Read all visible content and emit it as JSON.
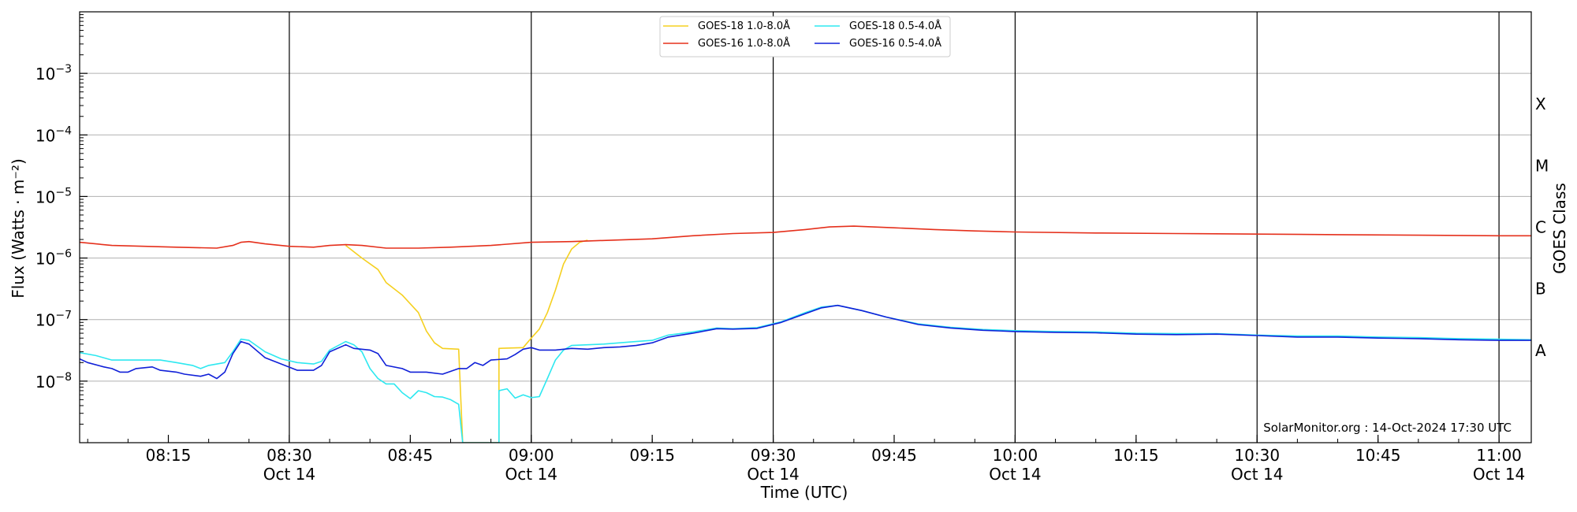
{
  "chart_data": {
    "type": "line",
    "xlabel": "Time (UTC)",
    "ylabel": "Flux (Watts · m⁻²)",
    "y2label": "GOES Class",
    "watermark": "SolarMonitor.org : 14-Oct-2024 17:30 UTC",
    "x_range": [
      "08:04",
      "11:04"
    ],
    "y_range": [
      1e-09,
      0.01
    ],
    "y_scale": "log",
    "grid": "horizontal at each decade; vertical lines at each half hour",
    "legend_position": "top-center",
    "x_ticks": [
      {
        "time": "08:15",
        "label": "08:15",
        "date": ""
      },
      {
        "time": "08:30",
        "label": "08:30",
        "date": "Oct 14"
      },
      {
        "time": "08:45",
        "label": "08:45",
        "date": ""
      },
      {
        "time": "09:00",
        "label": "09:00",
        "date": "Oct 14"
      },
      {
        "time": "09:15",
        "label": "09:15",
        "date": ""
      },
      {
        "time": "09:30",
        "label": "09:30",
        "date": "Oct 14"
      },
      {
        "time": "09:45",
        "label": "09:45",
        "date": ""
      },
      {
        "time": "10:00",
        "label": "10:00",
        "date": "Oct 14"
      },
      {
        "time": "10:15",
        "label": "10:15",
        "date": ""
      },
      {
        "time": "10:30",
        "label": "10:30",
        "date": "Oct 14"
      },
      {
        "time": "10:45",
        "label": "10:45",
        "date": ""
      },
      {
        "time": "11:00",
        "label": "11:00",
        "date": "Oct 14"
      }
    ],
    "y_ticks": [
      {
        "value": 1e-08,
        "label_base": "10",
        "label_exp": "−8"
      },
      {
        "value": 1e-07,
        "label_base": "10",
        "label_exp": "−7"
      },
      {
        "value": 1e-06,
        "label_base": "10",
        "label_exp": "−6"
      },
      {
        "value": 1e-05,
        "label_base": "10",
        "label_exp": "−5"
      },
      {
        "value": 0.0001,
        "label_base": "10",
        "label_exp": "−4"
      },
      {
        "value": 0.001,
        "label_base": "10",
        "label_exp": "−3"
      }
    ],
    "goes_classes": [
      {
        "label": "A",
        "value": 3.16e-08
      },
      {
        "label": "B",
        "value": 3.16e-07
      },
      {
        "label": "C",
        "value": 3.16e-06
      },
      {
        "label": "M",
        "value": 3.16e-05
      },
      {
        "label": "X",
        "value": 0.000316
      }
    ],
    "series": [
      {
        "name": "GOES-18 1.0-8.0Å",
        "color": "#f5d020",
        "points": [
          [
            "08:37",
            1.6e-06
          ],
          [
            "08:39",
            1e-06
          ],
          [
            "08:41",
            6.5e-07
          ],
          [
            "08:42",
            4e-07
          ],
          [
            "08:44",
            2.5e-07
          ],
          [
            "08:46",
            1.3e-07
          ],
          [
            "08:47",
            6.5e-08
          ],
          [
            "08:48",
            4.2e-08
          ],
          [
            "08:49",
            3.4e-08
          ],
          [
            "08:51",
            3.3e-08
          ],
          [
            "08:51.5",
            1e-09
          ],
          [
            "08:56",
            1e-09
          ],
          [
            "08:56",
            3.4e-08
          ],
          [
            "08:59",
            3.5e-08
          ],
          [
            "09:00",
            5e-08
          ],
          [
            "09:01",
            7e-08
          ],
          [
            "09:02",
            1.3e-07
          ],
          [
            "09:03",
            3e-07
          ],
          [
            "09:04",
            8e-07
          ],
          [
            "09:05",
            1.4e-06
          ],
          [
            "09:06",
            1.8e-06
          ],
          [
            "09:07",
            1.95e-06
          ]
        ]
      },
      {
        "name": "GOES-18 0.5-4.0Å",
        "color": "#2ee8f0",
        "points": [
          [
            "08:04",
            2.9e-08
          ],
          [
            "08:06",
            2.6e-08
          ],
          [
            "08:08",
            2.2e-08
          ],
          [
            "08:10",
            2.2e-08
          ],
          [
            "08:12",
            2.2e-08
          ],
          [
            "08:14",
            2.2e-08
          ],
          [
            "08:16",
            2e-08
          ],
          [
            "08:18",
            1.8e-08
          ],
          [
            "08:19",
            1.6e-08
          ],
          [
            "08:20",
            1.8e-08
          ],
          [
            "08:22",
            2e-08
          ],
          [
            "08:23",
            3e-08
          ],
          [
            "08:24",
            4.8e-08
          ],
          [
            "08:25",
            4.6e-08
          ],
          [
            "08:27",
            3e-08
          ],
          [
            "08:29",
            2.3e-08
          ],
          [
            "08:31",
            2e-08
          ],
          [
            "08:33",
            1.9e-08
          ],
          [
            "08:34",
            2.1e-08
          ],
          [
            "08:35",
            3.2e-08
          ],
          [
            "08:37",
            4.4e-08
          ],
          [
            "08:38",
            3.9e-08
          ],
          [
            "08:39",
            3e-08
          ],
          [
            "08:40",
            1.6e-08
          ],
          [
            "08:41",
            1.1e-08
          ],
          [
            "08:42",
            9e-09
          ],
          [
            "08:43",
            9e-09
          ],
          [
            "08:44",
            6.5e-09
          ],
          [
            "08:45",
            5.2e-09
          ],
          [
            "08:46",
            7e-09
          ],
          [
            "08:47",
            6.5e-09
          ],
          [
            "08:48",
            5.6e-09
          ],
          [
            "08:49",
            5.5e-09
          ],
          [
            "08:50",
            5e-09
          ],
          [
            "08:51",
            4.2e-09
          ],
          [
            "08:51.5",
            1e-09
          ],
          [
            "08:56",
            1e-09
          ],
          [
            "08:56",
            7e-09
          ],
          [
            "08:57",
            7.5e-09
          ],
          [
            "08:58",
            5.3e-09
          ],
          [
            "08:59",
            6e-09
          ],
          [
            "09:00",
            5.4e-09
          ],
          [
            "09:01",
            5.6e-09
          ],
          [
            "09:02",
            1.1e-08
          ],
          [
            "09:03",
            2.2e-08
          ],
          [
            "09:04",
            3.2e-08
          ],
          [
            "09:05",
            3.8e-08
          ],
          [
            "09:07",
            3.9e-08
          ],
          [
            "09:09",
            4e-08
          ],
          [
            "09:11",
            4.2e-08
          ],
          [
            "09:13",
            4.4e-08
          ],
          [
            "09:15",
            4.6e-08
          ],
          [
            "09:17",
            5.6e-08
          ],
          [
            "09:20",
            6.3e-08
          ],
          [
            "09:23",
            7.3e-08
          ],
          [
            "09:25",
            7.1e-08
          ],
          [
            "09:28",
            7.4e-08
          ],
          [
            "09:31",
            9.2e-08
          ],
          [
            "09:34",
            1.3e-07
          ],
          [
            "09:36",
            1.6e-07
          ],
          [
            "09:38",
            1.7e-07
          ],
          [
            "09:41",
            1.4e-07
          ],
          [
            "09:44",
            1.1e-07
          ],
          [
            "09:48",
            8.5e-08
          ],
          [
            "09:52",
            7.5e-08
          ],
          [
            "09:56",
            6.9e-08
          ],
          [
            "10:00",
            6.6e-08
          ],
          [
            "10:05",
            6.4e-08
          ],
          [
            "10:10",
            6.3e-08
          ],
          [
            "10:15",
            6e-08
          ],
          [
            "10:20",
            5.9e-08
          ],
          [
            "10:25",
            5.9e-08
          ],
          [
            "10:30",
            5.6e-08
          ],
          [
            "10:35",
            5.4e-08
          ],
          [
            "10:40",
            5.4e-08
          ],
          [
            "10:45",
            5.2e-08
          ],
          [
            "10:50",
            5.1e-08
          ],
          [
            "10:55",
            4.9e-08
          ],
          [
            "11:00",
            4.8e-08
          ],
          [
            "11:04",
            4.7e-08
          ]
        ]
      },
      {
        "name": "GOES-16 1.0-8.0Å",
        "color": "#e5301c",
        "points": [
          [
            "08:04",
            1.8e-06
          ],
          [
            "08:08",
            1.6e-06
          ],
          [
            "08:12",
            1.55e-06
          ],
          [
            "08:16",
            1.5e-06
          ],
          [
            "08:21",
            1.45e-06
          ],
          [
            "08:23",
            1.6e-06
          ],
          [
            "08:24",
            1.8e-06
          ],
          [
            "08:25",
            1.85e-06
          ],
          [
            "08:27",
            1.7e-06
          ],
          [
            "08:30",
            1.55e-06
          ],
          [
            "08:33",
            1.5e-06
          ],
          [
            "08:35",
            1.6e-06
          ],
          [
            "08:37",
            1.65e-06
          ],
          [
            "08:39",
            1.6e-06
          ],
          [
            "08:42",
            1.45e-06
          ],
          [
            "08:46",
            1.45e-06
          ],
          [
            "08:50",
            1.5e-06
          ],
          [
            "08:55",
            1.6e-06
          ],
          [
            "09:00",
            1.8e-06
          ],
          [
            "09:05",
            1.85e-06
          ],
          [
            "09:10",
            1.95e-06
          ],
          [
            "09:15",
            2.05e-06
          ],
          [
            "09:20",
            2.3e-06
          ],
          [
            "09:25",
            2.5e-06
          ],
          [
            "09:30",
            2.6e-06
          ],
          [
            "09:34",
            2.9e-06
          ],
          [
            "09:37",
            3.2e-06
          ],
          [
            "09:40",
            3.3e-06
          ],
          [
            "09:45",
            3.1e-06
          ],
          [
            "09:50",
            2.9e-06
          ],
          [
            "09:55",
            2.75e-06
          ],
          [
            "10:00",
            2.65e-06
          ],
          [
            "10:10",
            2.55e-06
          ],
          [
            "10:20",
            2.5e-06
          ],
          [
            "10:30",
            2.45e-06
          ],
          [
            "10:40",
            2.4e-06
          ],
          [
            "10:50",
            2.35e-06
          ],
          [
            "11:00",
            2.3e-06
          ],
          [
            "11:04",
            2.3e-06
          ]
        ]
      },
      {
        "name": "GOES-16 0.5-4.0Å",
        "color": "#1020d8",
        "points": [
          [
            "08:04",
            2.3e-08
          ],
          [
            "08:05",
            2e-08
          ],
          [
            "08:07",
            1.7e-08
          ],
          [
            "08:08",
            1.6e-08
          ],
          [
            "08:09",
            1.4e-08
          ],
          [
            "08:10",
            1.4e-08
          ],
          [
            "08:11",
            1.6e-08
          ],
          [
            "08:13",
            1.7e-08
          ],
          [
            "08:14",
            1.5e-08
          ],
          [
            "08:16",
            1.4e-08
          ],
          [
            "08:17",
            1.3e-08
          ],
          [
            "08:19",
            1.2e-08
          ],
          [
            "08:20",
            1.3e-08
          ],
          [
            "08:21",
            1.1e-08
          ],
          [
            "08:22",
            1.4e-08
          ],
          [
            "08:23",
            2.8e-08
          ],
          [
            "08:24",
            4.4e-08
          ],
          [
            "08:25",
            4e-08
          ],
          [
            "08:27",
            2.4e-08
          ],
          [
            "08:29",
            1.9e-08
          ],
          [
            "08:31",
            1.5e-08
          ],
          [
            "08:33",
            1.5e-08
          ],
          [
            "08:34",
            1.8e-08
          ],
          [
            "08:35",
            3e-08
          ],
          [
            "08:37",
            3.9e-08
          ],
          [
            "08:38",
            3.4e-08
          ],
          [
            "08:40",
            3.2e-08
          ],
          [
            "08:41",
            2.8e-08
          ],
          [
            "08:42",
            1.8e-08
          ],
          [
            "08:44",
            1.6e-08
          ],
          [
            "08:45",
            1.4e-08
          ],
          [
            "08:47",
            1.4e-08
          ],
          [
            "08:49",
            1.3e-08
          ],
          [
            "08:51",
            1.6e-08
          ],
          [
            "08:52",
            1.6e-08
          ],
          [
            "08:53",
            2e-08
          ],
          [
            "08:54",
            1.8e-08
          ],
          [
            "08:55",
            2.2e-08
          ],
          [
            "08:57",
            2.3e-08
          ],
          [
            "08:58",
            2.7e-08
          ],
          [
            "08:59",
            3.3e-08
          ],
          [
            "09:00",
            3.5e-08
          ],
          [
            "09:01",
            3.2e-08
          ],
          [
            "09:03",
            3.2e-08
          ],
          [
            "09:05",
            3.4e-08
          ],
          [
            "09:07",
            3.3e-08
          ],
          [
            "09:09",
            3.5e-08
          ],
          [
            "09:11",
            3.6e-08
          ],
          [
            "09:13",
            3.8e-08
          ],
          [
            "09:15",
            4.2e-08
          ],
          [
            "09:17",
            5.2e-08
          ],
          [
            "09:20",
            6e-08
          ],
          [
            "09:23",
            7.1e-08
          ],
          [
            "09:25",
            7e-08
          ],
          [
            "09:28",
            7.2e-08
          ],
          [
            "09:31",
            9e-08
          ],
          [
            "09:34",
            1.25e-07
          ],
          [
            "09:36",
            1.55e-07
          ],
          [
            "09:38",
            1.7e-07
          ],
          [
            "09:41",
            1.4e-07
          ],
          [
            "09:44",
            1.1e-07
          ],
          [
            "09:48",
            8.3e-08
          ],
          [
            "09:52",
            7.3e-08
          ],
          [
            "09:56",
            6.7e-08
          ],
          [
            "10:00",
            6.4e-08
          ],
          [
            "10:05",
            6.2e-08
          ],
          [
            "10:10",
            6.1e-08
          ],
          [
            "10:15",
            5.8e-08
          ],
          [
            "10:20",
            5.7e-08
          ],
          [
            "10:25",
            5.8e-08
          ],
          [
            "10:30",
            5.5e-08
          ],
          [
            "10:35",
            5.2e-08
          ],
          [
            "10:40",
            5.2e-08
          ],
          [
            "10:45",
            5e-08
          ],
          [
            "10:50",
            4.9e-08
          ],
          [
            "10:55",
            4.7e-08
          ],
          [
            "11:00",
            4.6e-08
          ],
          [
            "11:04",
            4.6e-08
          ]
        ]
      }
    ]
  }
}
